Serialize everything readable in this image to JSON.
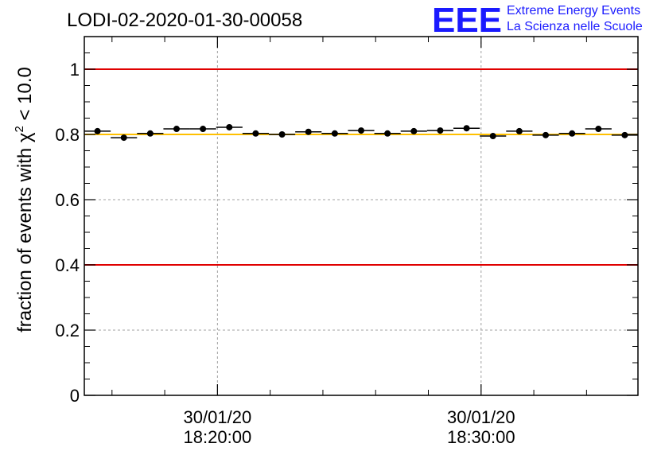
{
  "chart_data": {
    "type": "scatter",
    "title": "LODI-02-2020-01-30-00058",
    "ylabel_prefix": "fraction of events with ",
    "ylabel_symbol": "χ",
    "ylabel_sup": "2",
    "ylabel_suffix": " < 10.0",
    "xlabel": "",
    "ylim": [
      0,
      1.1
    ],
    "yticks": [
      {
        "value": 0,
        "label": "0"
      },
      {
        "value": 0.2,
        "label": "0.2"
      },
      {
        "value": 0.4,
        "label": "0.4"
      },
      {
        "value": 0.6,
        "label": "0.6"
      },
      {
        "value": 0.8,
        "label": "0.8"
      },
      {
        "value": 1,
        "label": "1"
      }
    ],
    "xlim_minutes": [
      -5.05,
      15.95
    ],
    "xticks": [
      {
        "minute": 0,
        "date": "30/01/20",
        "time": "18:20:00"
      },
      {
        "minute": 10,
        "date": "30/01/20",
        "time": "18:30:00"
      }
    ],
    "x_minor_step_minutes": 2,
    "x_minor_offset_minutes": 0,
    "bin_width_minutes": 1,
    "points": [
      {
        "minute": -4.55,
        "value": 0.81
      },
      {
        "minute": -3.55,
        "value": 0.79
      },
      {
        "minute": -2.55,
        "value": 0.803
      },
      {
        "minute": -1.55,
        "value": 0.817
      },
      {
        "minute": -0.55,
        "value": 0.817
      },
      {
        "minute": 0.45,
        "value": 0.822
      },
      {
        "minute": 1.45,
        "value": 0.803
      },
      {
        "minute": 2.45,
        "value": 0.8
      },
      {
        "minute": 3.45,
        "value": 0.808
      },
      {
        "minute": 4.45,
        "value": 0.803
      },
      {
        "minute": 5.45,
        "value": 0.812
      },
      {
        "minute": 6.45,
        "value": 0.803
      },
      {
        "minute": 7.45,
        "value": 0.81
      },
      {
        "minute": 8.45,
        "value": 0.812
      },
      {
        "minute": 9.45,
        "value": 0.819
      },
      {
        "minute": 10.45,
        "value": 0.795
      },
      {
        "minute": 11.45,
        "value": 0.81
      },
      {
        "minute": 12.45,
        "value": 0.798
      },
      {
        "minute": 13.45,
        "value": 0.803
      },
      {
        "minute": 14.45,
        "value": 0.817
      },
      {
        "minute": 15.45,
        "value": 0.798
      }
    ],
    "reference_lines": [
      {
        "name": "upper-limit",
        "value": 1.0,
        "color": "#e00000"
      },
      {
        "name": "nominal",
        "value": 0.8,
        "color": "#ffc000"
      },
      {
        "name": "lower-limit",
        "value": 0.4,
        "color": "#e00000"
      }
    ],
    "grid": true
  },
  "logo": {
    "letters": "EEE",
    "line1": "Extreme Energy Events",
    "line2": "La Scienza nelle Scuole",
    "color": "#1a1aff"
  }
}
